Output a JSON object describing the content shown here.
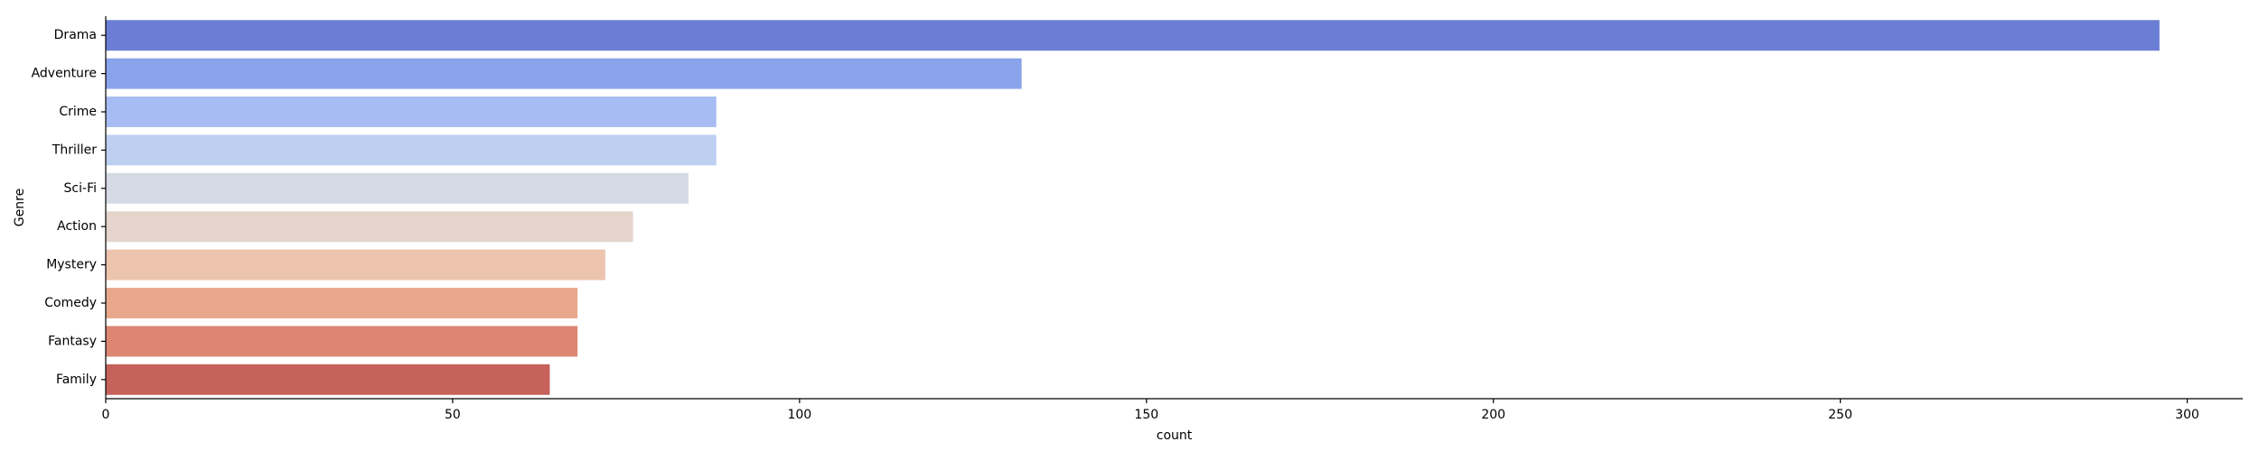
{
  "chart_data": {
    "type": "bar",
    "orientation": "horizontal",
    "categories": [
      "Drama",
      "Adventure",
      "Crime",
      "Thriller",
      "Sci-Fi",
      "Action",
      "Mystery",
      "Comedy",
      "Fantasy",
      "Family"
    ],
    "values": [
      296,
      132,
      88,
      88,
      84,
      76,
      72,
      68,
      68,
      64
    ],
    "colors": [
      "#6b7ed5",
      "#8aa3ea",
      "#a6bcf2",
      "#bdd0f1",
      "#d6dae5",
      "#e4d4cc",
      "#edc4ae",
      "#e9a88d",
      "#dd8673",
      "#c6625a"
    ],
    "xlabel": "count",
    "ylabel": "Genre",
    "xlim": [
      0,
      308
    ],
    "xticks": [
      0,
      50,
      100,
      150,
      200,
      250,
      300
    ],
    "grid": false,
    "legend": "none"
  }
}
